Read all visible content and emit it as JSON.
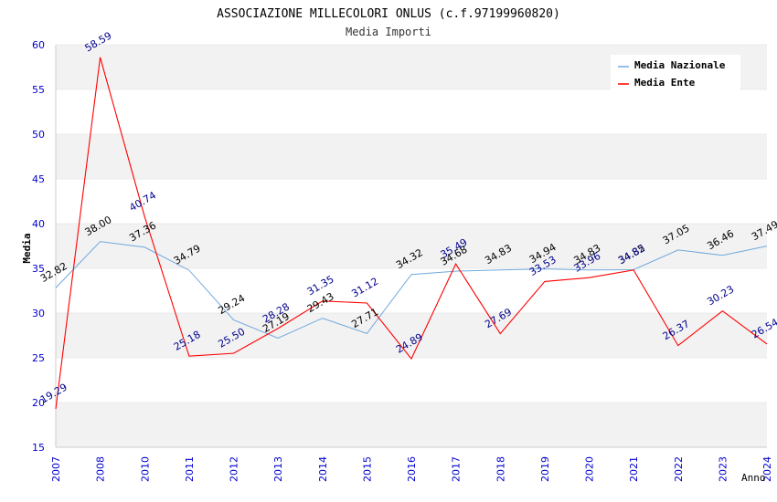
{
  "chart_data": {
    "type": "line",
    "title": "ASSOCIAZIONE MILLECOLORI ONLUS (c.f.97199960820)",
    "subtitle": "Media Importi",
    "ylabel": "Media",
    "xlabel": "Anno",
    "ylim": [
      15,
      60
    ],
    "yticks": [
      "15",
      "20",
      "25",
      "30",
      "35",
      "40",
      "45",
      "50",
      "55",
      "60"
    ],
    "categories": [
      "2007",
      "2008",
      "2010",
      "2011",
      "2012",
      "2013",
      "2014",
      "2015",
      "2016",
      "2017",
      "2018",
      "2019",
      "2020",
      "2021",
      "2022",
      "2023",
      "2024"
    ],
    "series": [
      {
        "name": "Media Nazionale",
        "color": "#6fa8dc",
        "labelColor": "#000000",
        "values": [
          32.82,
          38.0,
          37.36,
          34.79,
          29.24,
          27.19,
          29.43,
          27.71,
          34.32,
          34.68,
          34.83,
          34.94,
          34.83,
          34.85,
          37.05,
          36.46,
          37.49
        ],
        "labels": [
          "32.82",
          "38.00",
          "37.36",
          "34.79",
          "29.24",
          "27.19",
          "29.43",
          "27.71",
          "34.32",
          "34.68",
          "34.83",
          "34.94",
          "34.83",
          "34.85",
          "37.05",
          "36.46",
          "37.49"
        ]
      },
      {
        "name": "Media Ente",
        "color": "#ff0000",
        "labelColor": "#00008b",
        "values": [
          19.29,
          58.59,
          40.74,
          25.18,
          25.5,
          28.28,
          31.35,
          31.12,
          24.89,
          35.49,
          27.69,
          33.53,
          33.96,
          34.82,
          26.37,
          30.23,
          26.54
        ],
        "labels": [
          "19.29",
          "58.59",
          "40.74",
          "25.18",
          "25.50",
          "28.28",
          "31.35",
          "31.12",
          "24.89",
          "35.49",
          "27.69",
          "33.53",
          "33.96",
          "34.82",
          "26.37",
          "30.23",
          "26.54"
        ]
      }
    ],
    "legend": "top-right",
    "grid": true
  },
  "colors": {
    "axisText": "#0000cd",
    "band": "#f2f2f2",
    "gridLine": "#dddddd"
  }
}
